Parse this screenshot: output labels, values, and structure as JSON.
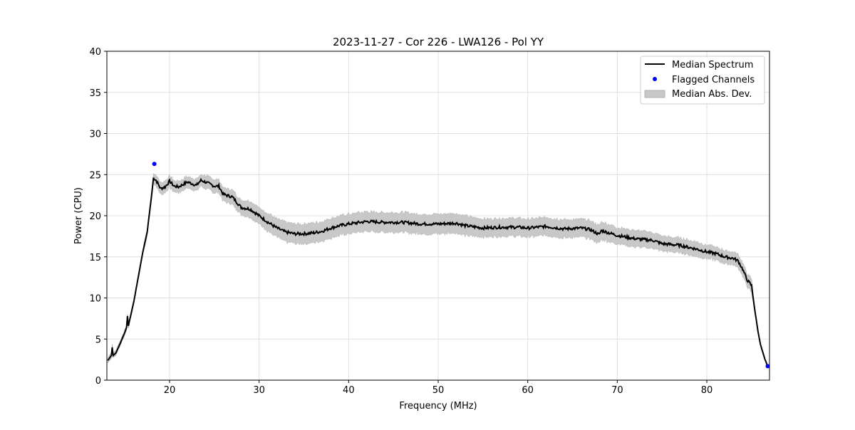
{
  "chart_data": {
    "type": "line",
    "title": "2023-11-27 - Cor 226 - LWA126 - Pol YY",
    "xlabel": "Frequency (MHz)",
    "ylabel": "Power (CPU)",
    "xlim": [
      13,
      87
    ],
    "ylim": [
      0,
      40
    ],
    "xticks": [
      20,
      30,
      40,
      50,
      60,
      70,
      80
    ],
    "yticks": [
      0,
      5,
      10,
      15,
      20,
      25,
      30,
      35,
      40
    ],
    "grid": true,
    "legend_position": "top-right",
    "legend": [
      "Median Spectrum",
      "Flagged Channels",
      "Median Abs. Dev."
    ],
    "colors": {
      "median": "#000000",
      "flagged": "#0000ff",
      "mad": "#c8c8c8"
    },
    "median_spectrum": {
      "x": [
        13.1,
        13.5,
        13.6,
        13.7,
        14,
        14.5,
        15,
        15.2,
        15.3,
        15.4,
        16,
        16.5,
        17,
        17.5,
        18,
        18.2,
        18.5,
        19,
        19.5,
        20,
        20.5,
        21,
        22,
        23,
        23.5,
        24,
        25,
        25.5,
        26,
        27,
        28,
        29,
        30,
        31,
        32,
        33,
        34,
        35,
        36,
        37,
        38,
        39,
        40,
        42,
        44,
        46,
        48,
        50,
        52,
        53,
        55,
        57,
        59,
        60,
        62,
        64,
        66,
        67,
        68,
        68.2,
        70,
        72,
        74,
        75,
        77,
        79,
        80,
        81,
        82,
        83,
        83.5,
        84,
        84.5,
        85,
        85.3,
        85.7,
        86,
        86.5,
        86.8
      ],
      "y": [
        2.4,
        3.0,
        4.0,
        3.0,
        3.3,
        4.5,
        5.8,
        6.4,
        7.8,
        6.6,
        9.5,
        12.5,
        15.5,
        18,
        22.5,
        24.6,
        24.3,
        23.3,
        23.5,
        24.2,
        23.6,
        23.5,
        24.1,
        23.7,
        24.3,
        24.1,
        23.6,
        23.6,
        22.6,
        22.3,
        21.0,
        20.8,
        20.0,
        19.2,
        18.5,
        18.0,
        17.8,
        17.8,
        17.9,
        18.1,
        18.5,
        18.8,
        19.0,
        19.3,
        19.2,
        19.2,
        19.0,
        19.0,
        19.1,
        18.8,
        18.5,
        18.6,
        18.6,
        18.5,
        18.7,
        18.4,
        18.5,
        18.3,
        17.7,
        18.2,
        17.6,
        17.2,
        17.0,
        16.6,
        16.4,
        15.9,
        15.6,
        15.4,
        15.0,
        14.8,
        14.5,
        13.5,
        12.2,
        11.5,
        9.0,
        6.0,
        4.3,
        2.5,
        1.7
      ]
    },
    "median_abs_dev": [
      0.3,
      0.4,
      0.4,
      0.3,
      0.3,
      0.3,
      0.3,
      0.3,
      0.3,
      0.3,
      0.3,
      0.3,
      0.3,
      0.4,
      0.5,
      0.6,
      0.7,
      0.7,
      0.7,
      0.7,
      0.7,
      0.7,
      0.7,
      0.7,
      0.7,
      0.8,
      0.8,
      0.8,
      0.8,
      0.9,
      0.9,
      1.0,
      1.0,
      1.1,
      1.1,
      1.2,
      1.2,
      1.2,
      1.2,
      1.2,
      1.2,
      1.2,
      1.2,
      1.2,
      1.2,
      1.2,
      1.2,
      1.2,
      1.2,
      1.2,
      1.1,
      1.1,
      1.1,
      1.1,
      1.1,
      1.1,
      1.1,
      1.1,
      1.1,
      1.1,
      1.0,
      1.0,
      1.0,
      0.9,
      0.9,
      0.9,
      0.8,
      0.8,
      0.8,
      0.8,
      0.8,
      0.8,
      0.8,
      0.8,
      0.4,
      0.2,
      0.1,
      0.1,
      0.1
    ],
    "flagged_channels": {
      "x": [
        18.3,
        86.8
      ],
      "y": [
        26.3,
        1.7
      ]
    }
  }
}
